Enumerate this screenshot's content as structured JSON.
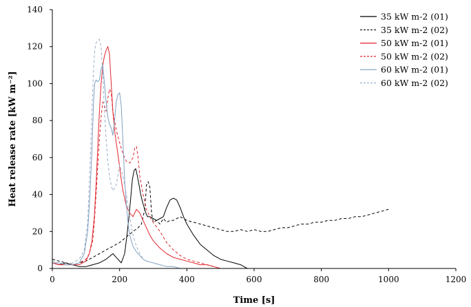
{
  "chart_data": {
    "type": "line",
    "title": "",
    "xlabel": "Time [s]",
    "ylabel": "Heat release rate [kW m⁻²]",
    "xlim": [
      0,
      1200
    ],
    "ylim": [
      0,
      140
    ],
    "xticks": [
      0,
      200,
      400,
      600,
      800,
      1000,
      1200
    ],
    "yticks": [
      0,
      20,
      40,
      60,
      80,
      100,
      120,
      140
    ],
    "grid": false,
    "legend_position": "top-right",
    "series": [
      {
        "name": "35 kW m-2 (01)",
        "color": "#000000",
        "dash": "solid",
        "x": [
          0,
          20,
          40,
          60,
          80,
          100,
          120,
          140,
          160,
          180,
          195,
          205,
          215,
          222,
          228,
          233,
          238,
          243,
          248,
          253,
          258,
          263,
          268,
          273,
          278,
          283,
          290,
          300,
          310,
          320,
          330,
          340,
          350,
          360,
          370,
          380,
          390,
          400,
          420,
          440,
          460,
          480,
          500,
          520,
          540,
          560,
          570,
          580
        ],
        "y": [
          3,
          2,
          3,
          2,
          1,
          1,
          2,
          3,
          5,
          8,
          5,
          3,
          8,
          18,
          28,
          38,
          48,
          53,
          54,
          50,
          45,
          40,
          36,
          33,
          30,
          28,
          28,
          27,
          26,
          27,
          28,
          33,
          37,
          38,
          37,
          33,
          28,
          24,
          18,
          13,
          10,
          7,
          5,
          4,
          3,
          2,
          1,
          0
        ]
      },
      {
        "name": "35 kW m-2 (02)",
        "color": "#000000",
        "dash": "4 3",
        "x": [
          0,
          20,
          40,
          60,
          80,
          100,
          120,
          140,
          160,
          180,
          200,
          220,
          240,
          255,
          265,
          275,
          280,
          285,
          290,
          295,
          300,
          310,
          320,
          330,
          340,
          350,
          360,
          370,
          380,
          400,
          420,
          440,
          460,
          480,
          500,
          520,
          540,
          560,
          580,
          600,
          620,
          640,
          660,
          680,
          700,
          720,
          740,
          760,
          780,
          800,
          820,
          840,
          860,
          880,
          900,
          920,
          940,
          960,
          980,
          1000
        ],
        "y": [
          5,
          4,
          3,
          2,
          3,
          4,
          6,
          8,
          10,
          12,
          14,
          17,
          20,
          22,
          24,
          32,
          45,
          47,
          44,
          30,
          25,
          26,
          24,
          27,
          25,
          26,
          26,
          27,
          28,
          26,
          25,
          24,
          23,
          22,
          21,
          20,
          20,
          21,
          20,
          21,
          20,
          20,
          21,
          22,
          22,
          23,
          24,
          24,
          25,
          25,
          26,
          26,
          27,
          27,
          28,
          28,
          29,
          30,
          31,
          32
        ]
      },
      {
        "name": "50 kW m-2 (01)",
        "color": "#e0242c",
        "dash": "solid",
        "x": [
          0,
          20,
          40,
          60,
          80,
          100,
          110,
          118,
          125,
          130,
          135,
          140,
          145,
          150,
          155,
          160,
          165,
          170,
          175,
          180,
          185,
          190,
          195,
          200,
          205,
          210,
          215,
          220,
          225,
          230,
          240,
          250,
          260,
          270,
          280,
          290,
          300,
          320,
          340,
          360,
          380,
          400,
          420,
          440,
          460,
          480,
          500
        ],
        "y": [
          3,
          2,
          2,
          2,
          2,
          4,
          8,
          15,
          28,
          45,
          65,
          85,
          100,
          110,
          115,
          118,
          120,
          116,
          100,
          85,
          75,
          68,
          62,
          55,
          48,
          42,
          38,
          34,
          32,
          30,
          28,
          32,
          30,
          26,
          22,
          18,
          15,
          11,
          8,
          6,
          5,
          4,
          3,
          2,
          2,
          1,
          0
        ]
      },
      {
        "name": "50 kW m-2 (02)",
        "color": "#e0242c",
        "dash": "4 3",
        "x": [
          0,
          20,
          40,
          60,
          80,
          100,
          110,
          120,
          125,
          130,
          135,
          140,
          145,
          150,
          155,
          160,
          165,
          170,
          175,
          180,
          185,
          190,
          200,
          210,
          220,
          230,
          240,
          245,
          250,
          255,
          260,
          270,
          280,
          290,
          300,
          320,
          340,
          360,
          380,
          400,
          420,
          440,
          460,
          480,
          500
        ],
        "y": [
          3,
          2,
          2,
          2,
          3,
          5,
          8,
          15,
          25,
          40,
          55,
          70,
          82,
          90,
          88,
          85,
          92,
          97,
          95,
          85,
          80,
          75,
          68,
          62,
          58,
          57,
          60,
          65,
          66,
          60,
          50,
          40,
          32,
          28,
          25,
          20,
          14,
          10,
          7,
          5,
          4,
          3,
          2,
          1,
          0
        ]
      },
      {
        "name": "60 kW m-2 (01)",
        "color": "#7f9fbf",
        "dash": "solid",
        "x": [
          0,
          20,
          40,
          60,
          80,
          95,
          105,
          112,
          118,
          122,
          126,
          130,
          135,
          140,
          145,
          150,
          155,
          160,
          165,
          170,
          175,
          180,
          185,
          190,
          195,
          200,
          205,
          210,
          215,
          220,
          225,
          230,
          240,
          250,
          260,
          270,
          280,
          300,
          320,
          340,
          360,
          380
        ],
        "y": [
          3,
          3,
          2,
          2,
          3,
          8,
          20,
          40,
          65,
          88,
          100,
          102,
          101,
          102,
          108,
          110,
          100,
          90,
          82,
          78,
          76,
          72,
          80,
          90,
          94,
          95,
          88,
          68,
          48,
          35,
          25,
          18,
          12,
          9,
          7,
          5,
          4,
          3,
          2,
          1,
          1,
          0
        ]
      },
      {
        "name": "60 kW m-2 (02)",
        "color": "#9aaec8",
        "dash": "4 3",
        "x": [
          0,
          20,
          40,
          60,
          80,
          95,
          105,
          112,
          118,
          122,
          126,
          130,
          135,
          140,
          145,
          150,
          155,
          160,
          165,
          170,
          175,
          180,
          190,
          200,
          210,
          220,
          230,
          240,
          250,
          260,
          270,
          280,
          300,
          320,
          340,
          360,
          380
        ],
        "y": [
          4,
          3,
          2,
          3,
          5,
          10,
          25,
          55,
          85,
          105,
          118,
          122,
          123,
          124,
          120,
          105,
          85,
          70,
          58,
          50,
          45,
          42,
          45,
          56,
          50,
          40,
          28,
          18,
          12,
          8,
          5,
          4,
          3,
          2,
          1,
          1,
          0
        ]
      }
    ]
  }
}
